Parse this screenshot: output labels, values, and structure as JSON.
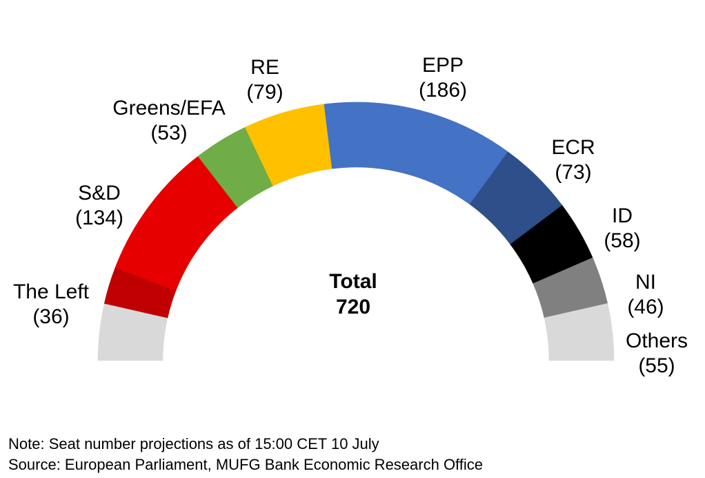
{
  "chart_data": {
    "type": "pie",
    "subtype": "parliament-half-donut",
    "total_label": "Total",
    "total_value": "720",
    "segments": [
      {
        "name": "Others",
        "value": 55,
        "color": "#d9d9d9",
        "side": "left"
      },
      {
        "name": "The Left",
        "value": 36,
        "color": "#c00000",
        "side": "left"
      },
      {
        "name": "S&D",
        "value": 134,
        "color": "#e60000"
      },
      {
        "name": "Greens/EFA",
        "value": 53,
        "color": "#70ad47"
      },
      {
        "name": "RE",
        "value": 79,
        "color": "#ffc000"
      },
      {
        "name": "EPP",
        "value": 186,
        "color": "#4472c4"
      },
      {
        "name": "ECR",
        "value": 73,
        "color": "#2f4f8a"
      },
      {
        "name": "ID",
        "value": 58,
        "color": "#000000"
      },
      {
        "name": "NI",
        "value": 46,
        "color": "#808080"
      },
      {
        "name": "Others",
        "value": 55,
        "color": "#d9d9d9",
        "side": "right"
      }
    ],
    "labels": [
      {
        "party": "The Left",
        "name": "The Left",
        "count": "(36)"
      },
      {
        "party": "S&D",
        "name": "S&D",
        "count": "(134)"
      },
      {
        "party": "Greens/EFA",
        "name": "Greens/EFA",
        "count": "(53)"
      },
      {
        "party": "RE",
        "name": "RE",
        "count": "(79)"
      },
      {
        "party": "EPP",
        "name": "EPP",
        "count": "(186)"
      },
      {
        "party": "ECR",
        "name": "ECR",
        "count": "(73)"
      },
      {
        "party": "ID",
        "name": "ID",
        "count": "(58)"
      },
      {
        "party": "NI",
        "name": "NI",
        "count": "(46)"
      },
      {
        "party": "Others",
        "name": "Others",
        "count": "(55)"
      }
    ]
  },
  "notes": {
    "note": "Note: Seat number projections as of 15:00 CET 10 July",
    "source": "Source: European Parliament, MUFG Bank Economic Research Office"
  }
}
